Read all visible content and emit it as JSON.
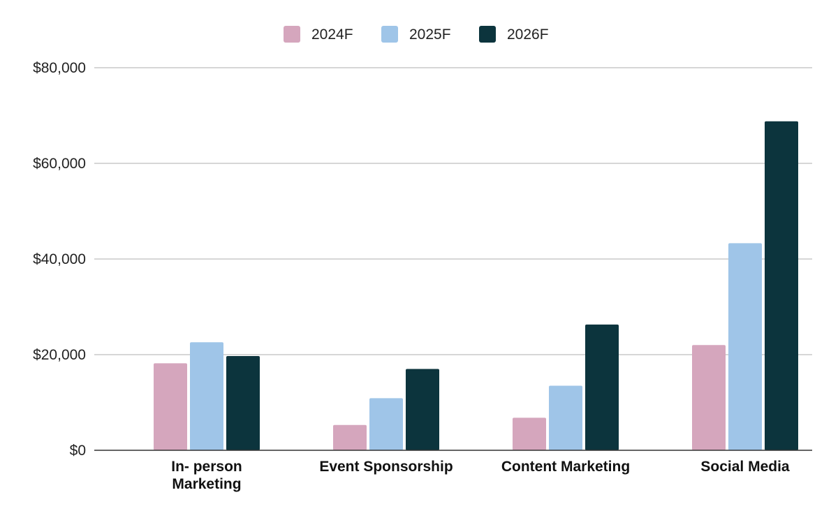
{
  "chart_data": {
    "type": "bar",
    "categories": [
      [
        "In- person",
        "Marketing"
      ],
      [
        "Event Sponsorship"
      ],
      [
        "Content Marketing"
      ],
      [
        "Social Media"
      ]
    ],
    "series": [
      {
        "name": "2024F",
        "color": "#d5a6bd",
        "values": [
          18200,
          5300,
          6800,
          22000
        ]
      },
      {
        "name": "2025F",
        "color": "#9fc5e8",
        "values": [
          22600,
          10900,
          13500,
          43300
        ]
      },
      {
        "name": "2026F",
        "color": "#0c343d",
        "values": [
          19700,
          17000,
          26300,
          68800
        ]
      }
    ],
    "y_ticks": [
      "$0",
      "$20,000",
      "$40,000",
      "$60,000",
      "$80,000"
    ],
    "y_tick_values": [
      0,
      20000,
      40000,
      60000,
      80000
    ],
    "ylim": [
      0,
      80000
    ],
    "grid": true,
    "legend_position": "top-center"
  }
}
